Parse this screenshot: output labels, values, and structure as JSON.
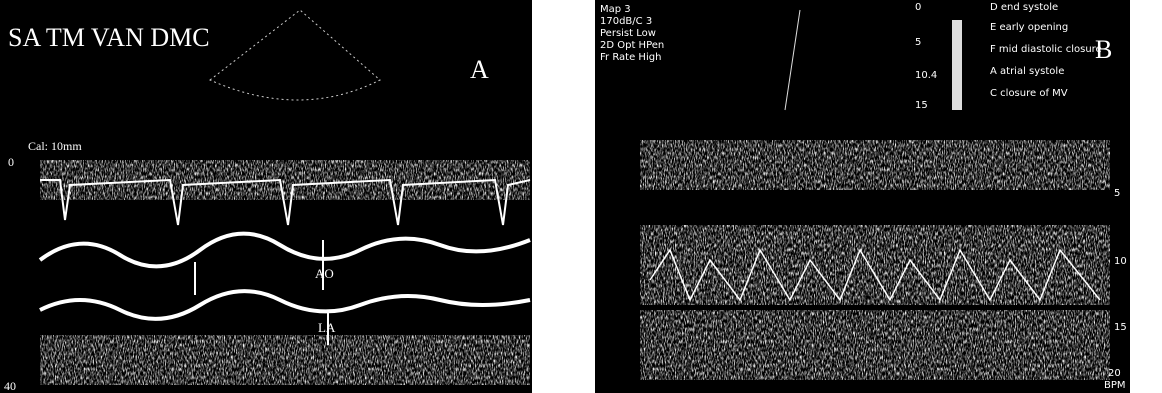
{
  "panel_a": {
    "title": "SA TM VAN DMC",
    "letter": "A",
    "calibration": "Cal: 10mm",
    "depth_top": "0",
    "depth_bottom": "40",
    "labels": [
      "AO",
      "LA"
    ]
  },
  "panel_b": {
    "settings": [
      "Map 3",
      "170dB/C 3",
      "Persist Low",
      "2D Opt HPen",
      "Fr Rate High"
    ],
    "letter": "B",
    "scale": [
      "0",
      "5",
      "10.4",
      "15"
    ],
    "legend": [
      "D   end systole",
      "E   early opening",
      "F   mid diastolic closure",
      "A   atrial systole",
      "C   closure of MV"
    ],
    "depth_marks": [
      "5",
      "10",
      "15",
      "20"
    ],
    "unit": "BPM"
  }
}
